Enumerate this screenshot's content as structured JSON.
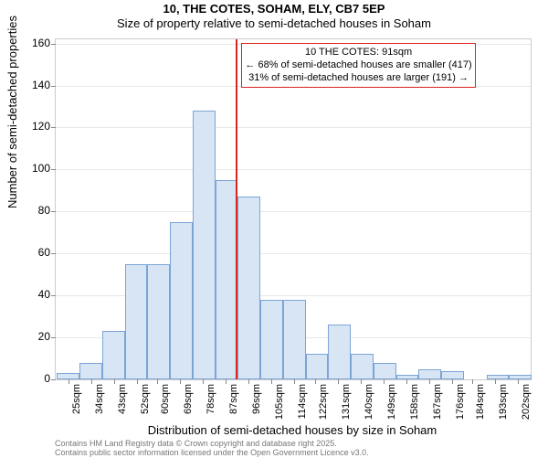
{
  "chart": {
    "type": "histogram",
    "title_line1": "10, THE COTES, SOHAM, ELY, CB7 5EP",
    "title_line2": "Size of property relative to semi-detached houses in Soham",
    "ylabel": "Number of semi-detached properties",
    "xlabel": "Distribution of semi-detached houses by size in Soham",
    "background_color": "#ffffff",
    "grid_color": "#e8e8e8",
    "axis_color": "#cccccc",
    "bar_fill": "#d7e5f4",
    "bar_border": "#7ba5d6",
    "marker_color": "#d22",
    "title_fontsize": 13,
    "label_fontsize": 13,
    "tick_fontsize": 12,
    "x_min": 20,
    "x_max": 207,
    "y_min": 0,
    "y_max": 162,
    "y_ticks": [
      0,
      20,
      40,
      60,
      80,
      100,
      120,
      140,
      160
    ],
    "x_ticks": [
      25,
      34,
      43,
      52,
      60,
      69,
      78,
      87,
      96,
      105,
      114,
      122,
      131,
      140,
      149,
      158,
      167,
      176,
      184,
      193,
      202
    ],
    "x_tick_suffix": "sqm",
    "bin_width": 8.9,
    "bars": [
      {
        "x": 20.5,
        "h": 3
      },
      {
        "x": 29.4,
        "h": 8
      },
      {
        "x": 38.3,
        "h": 23
      },
      {
        "x": 47.2,
        "h": 55
      },
      {
        "x": 56.1,
        "h": 55
      },
      {
        "x": 65.0,
        "h": 75
      },
      {
        "x": 73.9,
        "h": 128
      },
      {
        "x": 82.8,
        "h": 95
      },
      {
        "x": 91.7,
        "h": 87
      },
      {
        "x": 100.6,
        "h": 38
      },
      {
        "x": 109.5,
        "h": 38
      },
      {
        "x": 118.4,
        "h": 12
      },
      {
        "x": 127.3,
        "h": 26
      },
      {
        "x": 136.2,
        "h": 12
      },
      {
        "x": 145.1,
        "h": 8
      },
      {
        "x": 154.0,
        "h": 2
      },
      {
        "x": 162.9,
        "h": 5
      },
      {
        "x": 171.8,
        "h": 4
      },
      {
        "x": 180.7,
        "h": 0
      },
      {
        "x": 189.6,
        "h": 2
      },
      {
        "x": 198.5,
        "h": 2
      }
    ],
    "marker_x": 91,
    "annotation": {
      "line1": "10 THE COTES: 91sqm",
      "line2": "← 68% of semi-detached houses are smaller (417)",
      "line3": "31% of semi-detached houses are larger (191) →"
    },
    "footer_line1": "Contains HM Land Registry data © Crown copyright and database right 2025.",
    "footer_line2": "Contains public sector information licensed under the Open Government Licence v3.0."
  }
}
